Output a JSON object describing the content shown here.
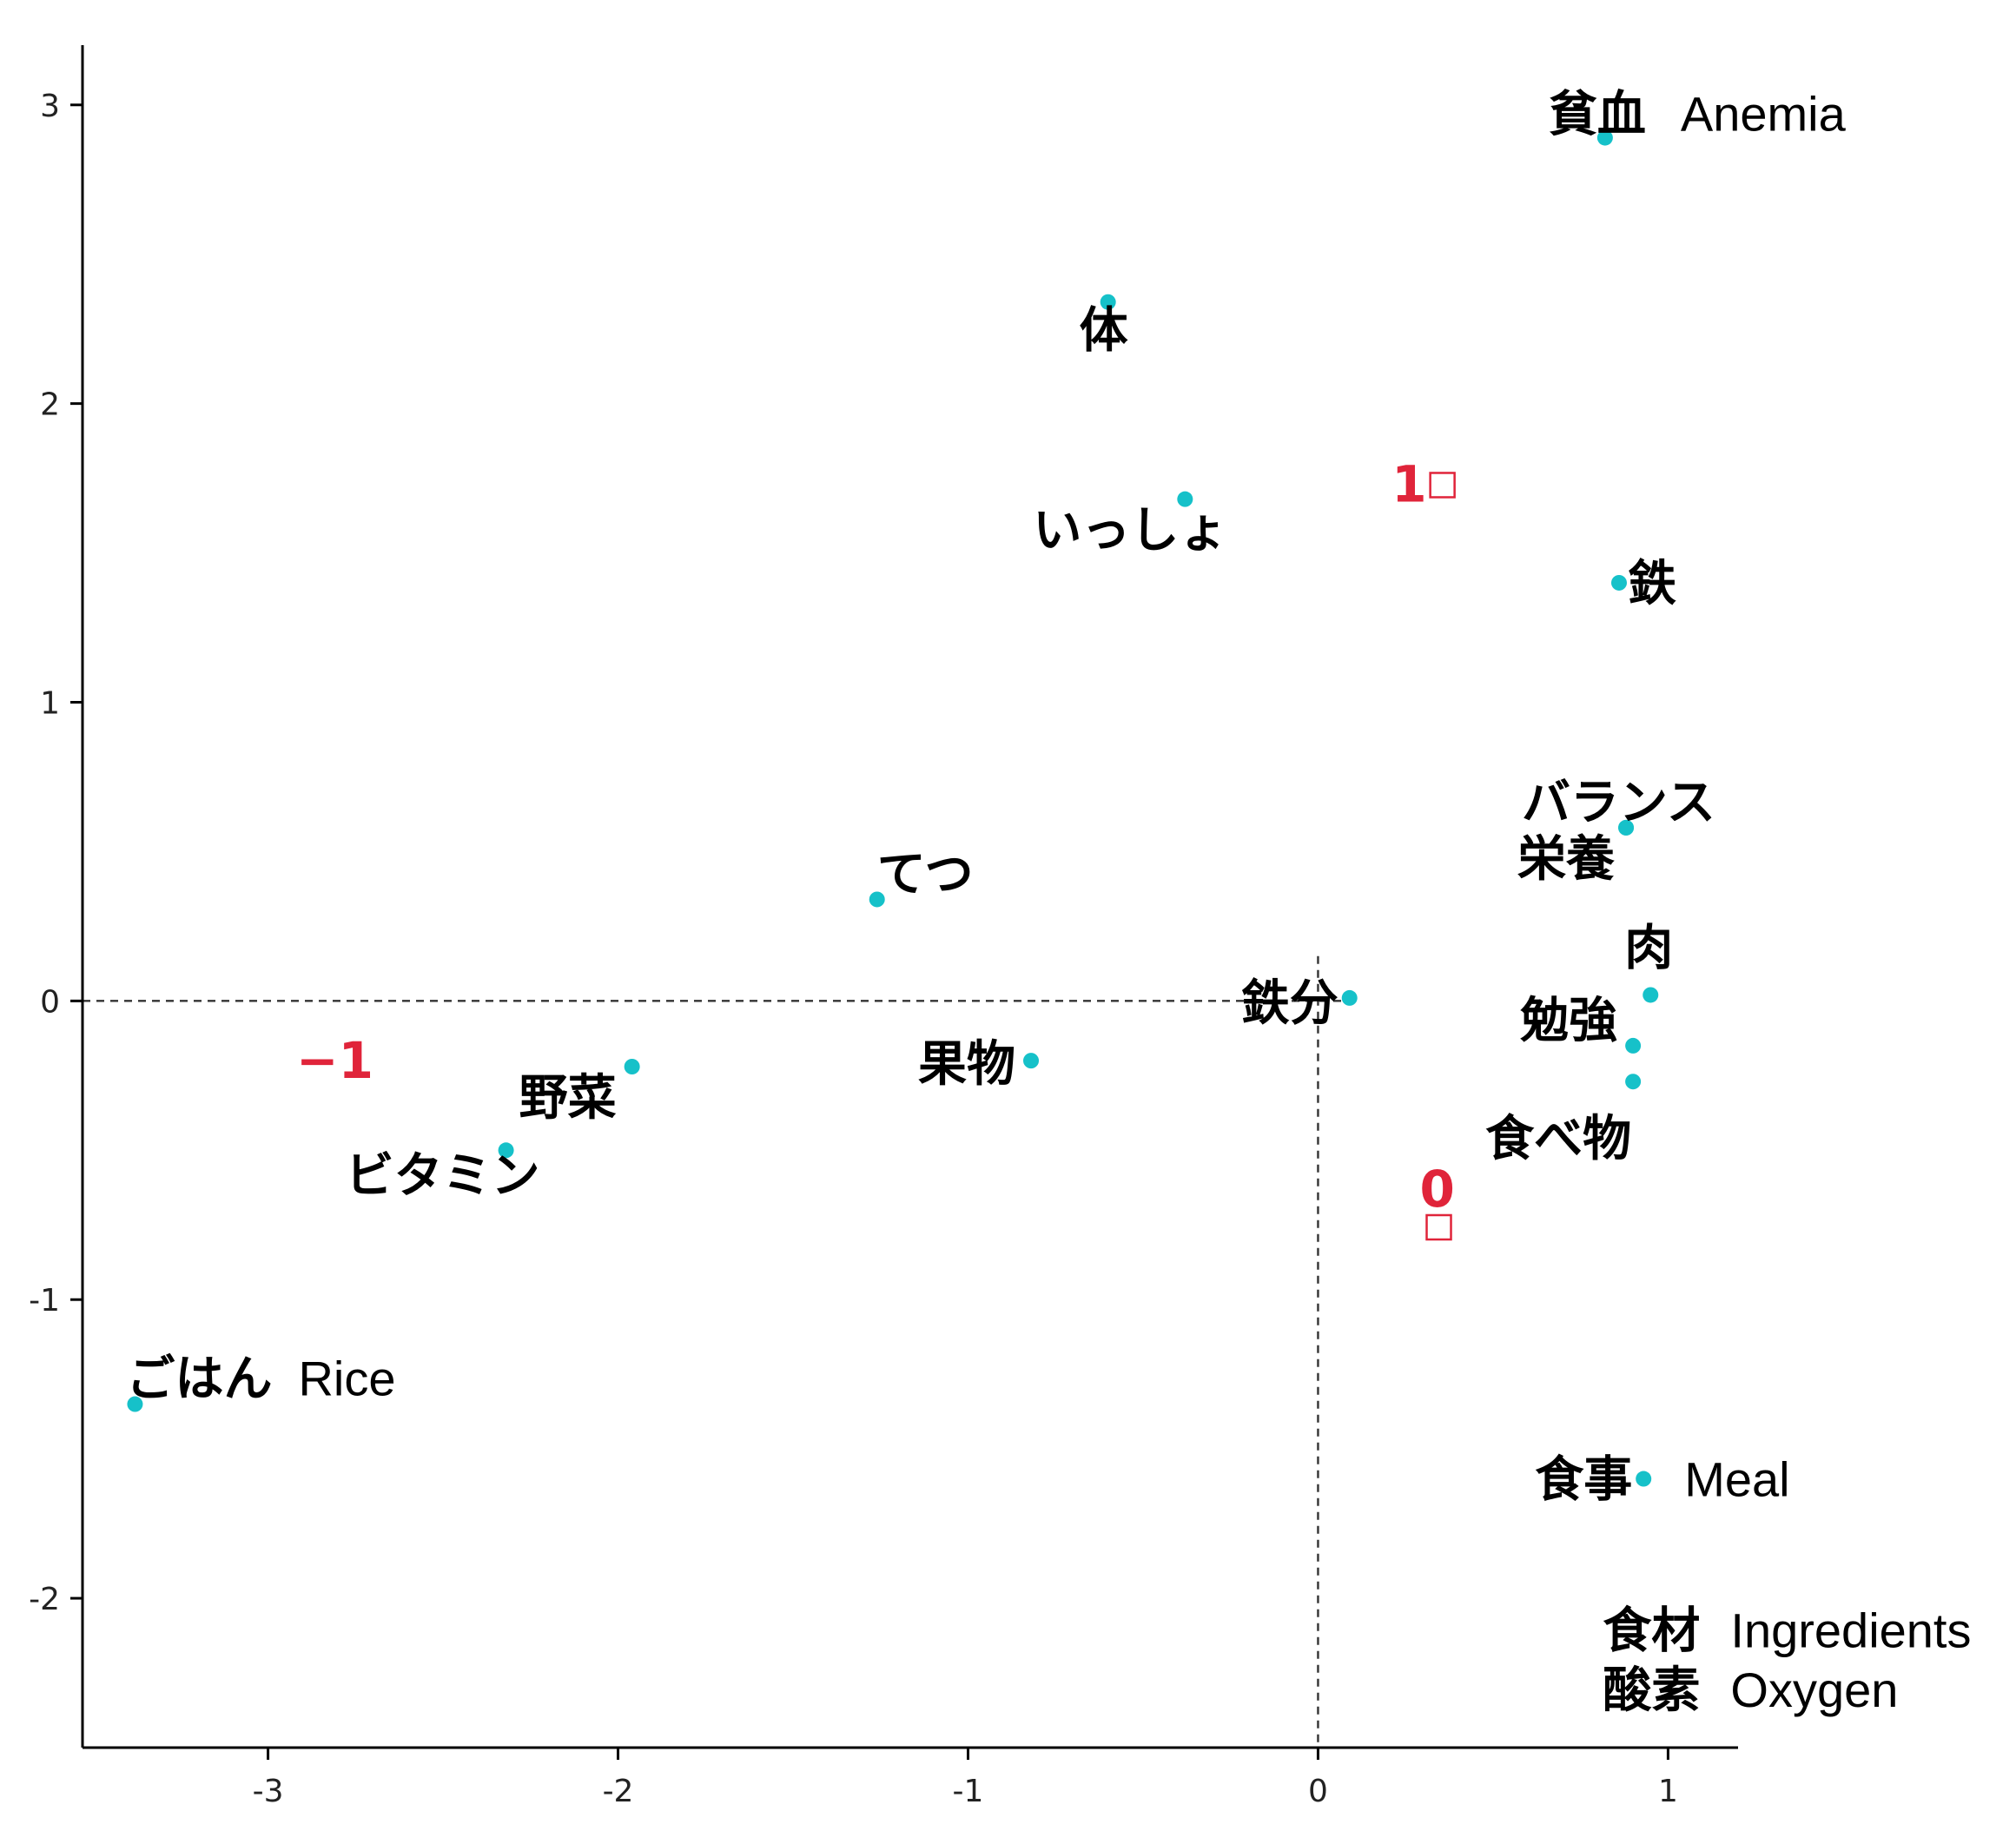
{
  "chart_data": {
    "type": "scatter",
    "title": "",
    "xlabel": "",
    "ylabel": "",
    "xlim": [
      -3.53,
      1.2
    ],
    "ylim": [
      -2.5,
      3.2
    ],
    "x_ticks": [
      -3,
      -2,
      -1,
      0,
      1
    ],
    "y_ticks": [
      -2,
      -1,
      0,
      1,
      2,
      3
    ],
    "x_tick_labels": [
      "-3",
      "-2",
      "-1",
      "0",
      "1"
    ],
    "y_tick_labels": [
      "-2",
      "-1",
      "0",
      "1",
      "2",
      "3"
    ],
    "reference_lines": {
      "x": 0,
      "y": 0,
      "style": "dashed"
    },
    "point_color": "#16c1c9",
    "group_color": "#e0243a",
    "points": [
      {
        "label": "貧血",
        "translation": "Anemia",
        "x": 0.82,
        "y": 2.89
      },
      {
        "label": "体",
        "translation": "",
        "x": -0.6,
        "y": 2.34
      },
      {
        "label": "いっしょ",
        "translation": "",
        "x": -0.38,
        "y": 1.68
      },
      {
        "label": "鉄",
        "translation": "",
        "x": 0.86,
        "y": 1.4
      },
      {
        "label": "バランス",
        "translation": "",
        "x": 0.88,
        "y": 0.58
      },
      {
        "label": "栄養",
        "translation": "",
        "x": 0.88,
        "y": 0.58
      },
      {
        "label": "てつ",
        "translation": "",
        "x": -1.26,
        "y": 0.34
      },
      {
        "label": "鉄分",
        "translation": "",
        "x": 0.09,
        "y": 0.01
      },
      {
        "label": "肉",
        "translation": "",
        "x": 0.95,
        "y": 0.02
      },
      {
        "label": "勉強",
        "translation": "",
        "x": 0.9,
        "y": -0.15
      },
      {
        "label": "食べ物",
        "translation": "",
        "x": 0.9,
        "y": -0.27
      },
      {
        "label": "果物",
        "translation": "",
        "x": -0.82,
        "y": -0.2
      },
      {
        "label": "野菜",
        "translation": "",
        "x": -1.96,
        "y": -0.22
      },
      {
        "label": "ビタミン",
        "translation": "",
        "x": -2.32,
        "y": -0.5
      },
      {
        "label": "ごはん",
        "translation": "Rice",
        "x": -3.38,
        "y": -1.35
      },
      {
        "label": "食事",
        "translation": "Meal",
        "x": 0.93,
        "y": -1.6
      },
      {
        "label": "食材",
        "translation": "Ingredients",
        "x": 1.0,
        "y": -2.1
      },
      {
        "label": "酸素",
        "translation": "Oxygen",
        "x": 1.0,
        "y": -2.3
      }
    ],
    "groups": [
      {
        "label": "1",
        "x": 0.28,
        "y": 1.73
      },
      {
        "label": "0",
        "x": 0.36,
        "y": -0.63
      },
      {
        "label": "−1",
        "x": -2.85,
        "y": -0.2
      }
    ]
  }
}
